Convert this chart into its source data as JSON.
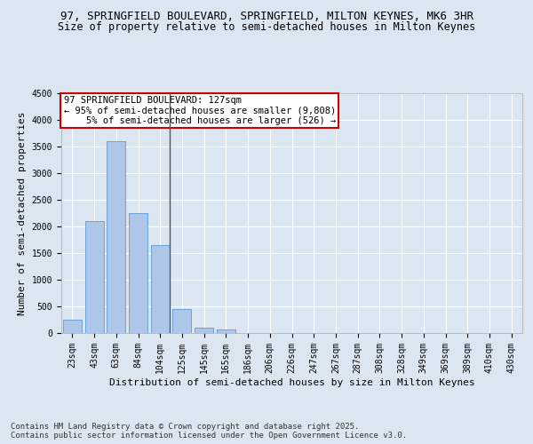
{
  "title_line1": "97, SPRINGFIELD BOULEVARD, SPRINGFIELD, MILTON KEYNES, MK6 3HR",
  "title_line2": "Size of property relative to semi-detached houses in Milton Keynes",
  "xlabel": "Distribution of semi-detached houses by size in Milton Keynes",
  "ylabel": "Number of semi-detached properties",
  "categories": [
    "23sqm",
    "43sqm",
    "63sqm",
    "84sqm",
    "104sqm",
    "125sqm",
    "145sqm",
    "165sqm",
    "186sqm",
    "206sqm",
    "226sqm",
    "247sqm",
    "267sqm",
    "287sqm",
    "308sqm",
    "328sqm",
    "349sqm",
    "369sqm",
    "389sqm",
    "410sqm",
    "430sqm"
  ],
  "values": [
    250,
    2100,
    3600,
    2250,
    1650,
    450,
    100,
    60,
    0,
    0,
    0,
    0,
    0,
    0,
    0,
    0,
    0,
    0,
    0,
    0,
    0
  ],
  "bar_color": "#aec6e8",
  "bar_edgecolor": "#5b9bd5",
  "vline_index": 4,
  "annotation_box_text": "97 SPRINGFIELD BOULEVARD: 127sqm\n← 95% of semi-detached houses are smaller (9,808)\n    5% of semi-detached houses are larger (526) →",
  "annotation_box_facecolor": "#ffffff",
  "annotation_box_edgecolor": "#cc0000",
  "ylim": [
    0,
    4500
  ],
  "yticks": [
    0,
    500,
    1000,
    1500,
    2000,
    2500,
    3000,
    3500,
    4000,
    4500
  ],
  "background_color": "#dce6f1",
  "grid_color": "#ffffff",
  "vline_color": "#555555",
  "footnote": "Contains HM Land Registry data © Crown copyright and database right 2025.\nContains public sector information licensed under the Open Government Licence v3.0.",
  "title_fontsize": 9,
  "subtitle_fontsize": 8.5,
  "tick_fontsize": 7,
  "label_fontsize": 8,
  "annotation_fontsize": 7.5,
  "footnote_fontsize": 6.5
}
